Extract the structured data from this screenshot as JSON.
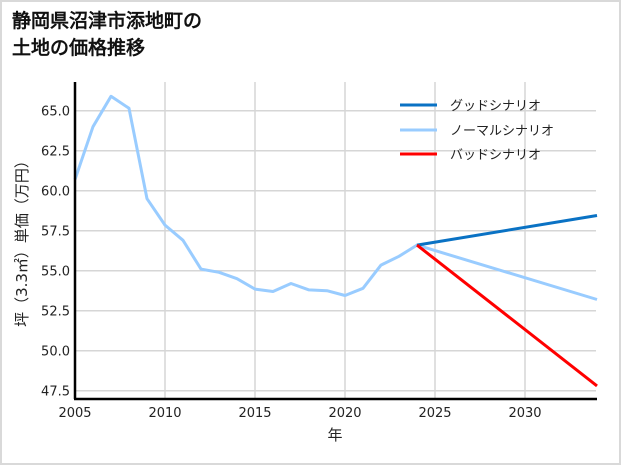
{
  "chart_data": {
    "type": "line",
    "title": "静岡県沼津市添地町の土地の価格推移",
    "title_lines": [
      "静岡県沼津市添地町の",
      "土地の価格推移"
    ],
    "xlabel": "年",
    "ylabel": "坪（3.3㎡）単価（万円）",
    "xlim": [
      2005,
      2034
    ],
    "ylim": [
      47.0,
      66.8
    ],
    "x_ticks": [
      2005,
      2010,
      2015,
      2020,
      2025,
      2030
    ],
    "y_ticks": [
      47.5,
      50.0,
      52.5,
      55.0,
      57.5,
      60.0,
      62.5,
      65.0
    ],
    "y_tick_labels": [
      "47.5",
      "50.0",
      "52.5",
      "55.0",
      "57.5",
      "60.0",
      "62.5",
      "65.0"
    ],
    "grid": true,
    "legend_position": "upper right",
    "series": [
      {
        "name": "グッドシナリオ",
        "color": "#0a72c4",
        "x": [
          2024,
          2034
        ],
        "values": [
          56.6,
          58.45
        ]
      },
      {
        "name": "ノーマルシナリオ",
        "color": "#99ccff",
        "x": [
          2005,
          2006,
          2007,
          2008,
          2009,
          2010,
          2011,
          2012,
          2013,
          2014,
          2015,
          2016,
          2017,
          2018,
          2019,
          2020,
          2021,
          2022,
          2023,
          2024,
          2034
        ],
        "values": [
          60.7,
          64.0,
          65.9,
          65.15,
          59.5,
          57.85,
          56.9,
          55.1,
          54.9,
          54.5,
          53.85,
          53.7,
          54.2,
          53.8,
          53.75,
          53.45,
          53.9,
          55.35,
          55.9,
          56.6,
          53.2
        ]
      },
      {
        "name": "バッドシナリオ",
        "color": "#ff0000",
        "x": [
          2024,
          2034
        ],
        "values": [
          56.6,
          47.8
        ]
      }
    ]
  }
}
